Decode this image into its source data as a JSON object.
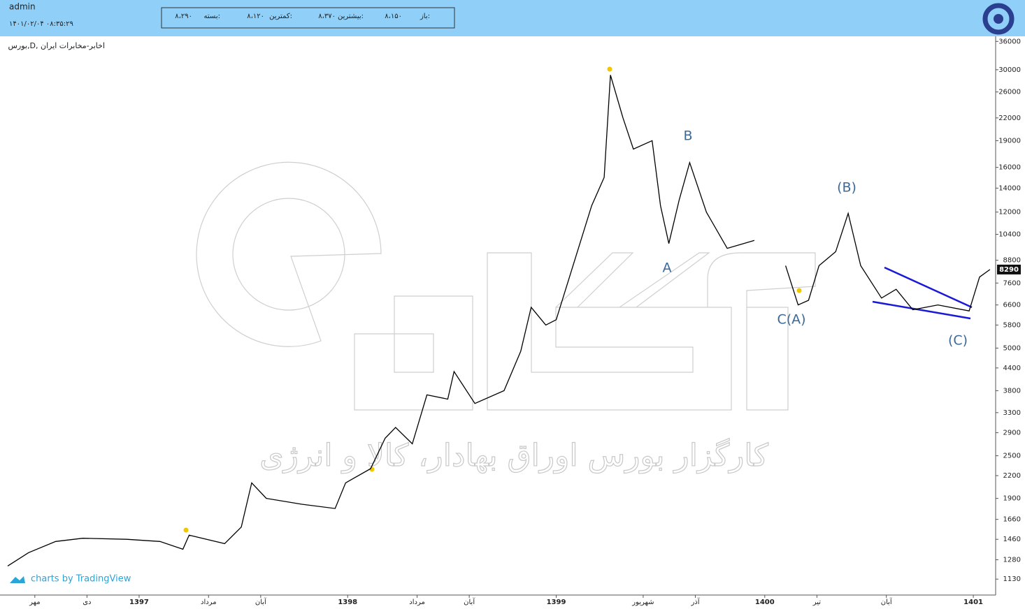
{
  "header": {
    "user": "admin",
    "datetime": "۱۴۰۱/۰۲/۰۴ ۰۸:۳۵:۲۹",
    "quote": [
      [
        "باز:",
        "۸،۱۵۰"
      ],
      [
        "بیشترین:",
        "۸،۳۷۰"
      ],
      [
        "کمترین:",
        "۸،۱۲۰"
      ],
      [
        "بسته:",
        "۸،۲۹۰"
      ]
    ]
  },
  "chart_data": {
    "type": "line",
    "title": "بورس,D, اخابر-مخابرات ایران",
    "watermark": "کارگزار بورس اوراق بهادار، کالا و انرژی",
    "credit": "charts by TradingView",
    "log_scale": true,
    "last_price": 8290,
    "annotations": [
      "B",
      "A",
      "(B)",
      "C(A)",
      "(C)"
    ],
    "x": [
      1396.37,
      1396.47,
      1396.6,
      1396.73,
      1396.94,
      1397.1,
      1397.21,
      1397.24,
      1397.41,
      1397.49,
      1397.54,
      1397.61,
      1397.78,
      1397.94,
      1397.99,
      1398.11,
      1398.18,
      1398.23,
      1398.31,
      1398.38,
      1398.48,
      1398.51,
      1398.61,
      1398.75,
      1398.83,
      1398.88,
      1398.95,
      1399.0,
      1399.17,
      1399.23,
      1399.26,
      1399.32,
      1399.37,
      1399.46,
      1399.5,
      1399.54,
      1399.59,
      1399.64,
      1399.72,
      1399.82,
      1399.95,
      1400.03,
      1400.1,
      1400.16,
      1400.21,
      1400.26,
      1400.34,
      1400.4,
      1400.46,
      1400.56,
      1400.63,
      1400.71,
      1400.83,
      1400.98,
      1401.03,
      1401.08
    ],
    "series": [
      {
        "name": "اخابر",
        "color": "#000000",
        "values": [
          1230,
          1340,
          1440,
          1470,
          1460,
          1440,
          1370,
          1500,
          1420,
          1580,
          2100,
          1900,
          1830,
          1780,
          2100,
          2300,
          2800,
          3000,
          2700,
          3700,
          3600,
          4300,
          3500,
          3800,
          4900,
          6500,
          5800,
          6000,
          12500,
          15000,
          29000,
          22000,
          18000,
          19000,
          12500,
          9800,
          13000,
          16500,
          12000,
          9500,
          10000,
          null,
          8500,
          6600,
          6800,
          8500,
          9300,
          11900,
          8500,
          6900,
          7300,
          6400,
          6600,
          6350,
          7900,
          8290
        ]
      }
    ],
    "xlim": [
      1396.333,
      1401.107
    ],
    "xticks": [
      {
        "value": 1396.5,
        "label": "مهر"
      },
      {
        "value": 1396.75,
        "label": "دی"
      },
      {
        "value": 1397,
        "label": "1397"
      },
      {
        "value": 1397.333,
        "label": "مرداد"
      },
      {
        "value": 1397.583,
        "label": "آبان"
      },
      {
        "value": 1398,
        "label": "1398"
      },
      {
        "value": 1398.333,
        "label": "مرداد"
      },
      {
        "value": 1398.583,
        "label": "آبان"
      },
      {
        "value": 1399,
        "label": "1399"
      },
      {
        "value": 1399.417,
        "label": "شهریور"
      },
      {
        "value": 1399.667,
        "label": "آذر"
      },
      {
        "value": 1400,
        "label": "1400"
      },
      {
        "value": 1400.25,
        "label": "تیر"
      },
      {
        "value": 1400.583,
        "label": "آبان"
      },
      {
        "value": 1401,
        "label": "1401"
      }
    ],
    "ylim": [
      1020,
      37200
    ],
    "yticks": [
      1130,
      1280,
      1460,
      1660,
      1900,
      2200,
      2500,
      2900,
      3300,
      3800,
      4400,
      5000,
      5800,
      6600,
      7600,
      8800,
      10400,
      12000,
      14000,
      16000,
      19000,
      22000,
      26000,
      30000,
      36000
    ]
  }
}
